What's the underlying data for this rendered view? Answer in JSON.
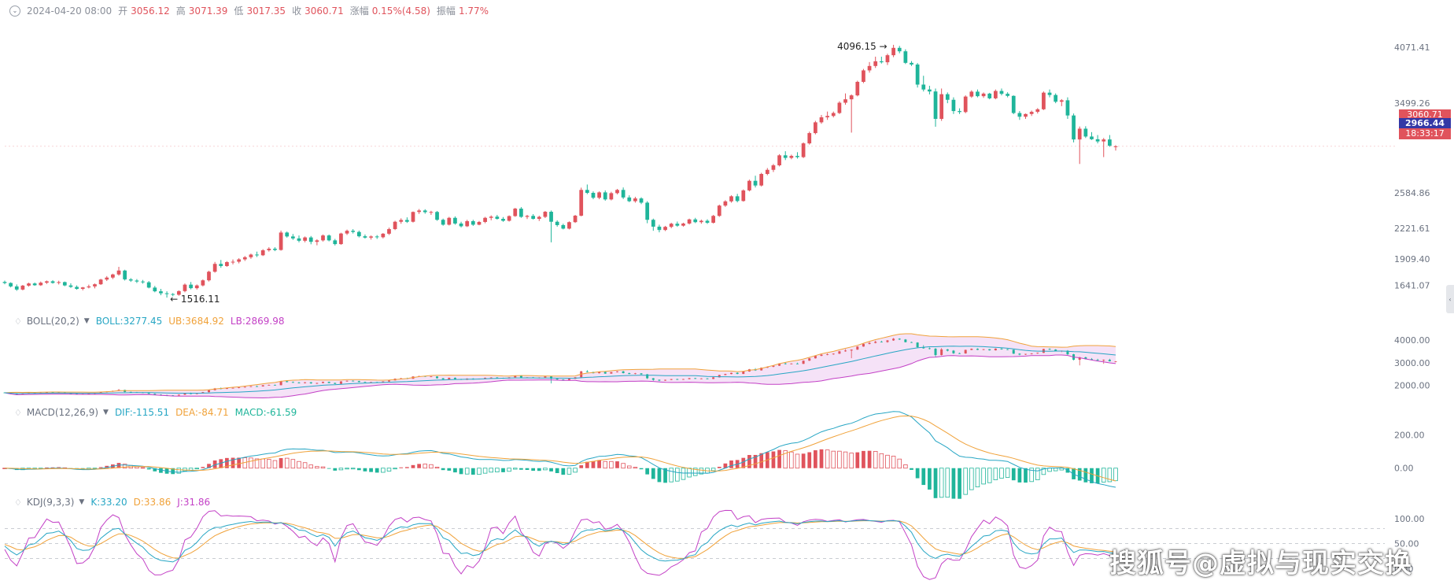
{
  "colors": {
    "up": "#e0535c",
    "down": "#1fb59a",
    "boll_mid": "#27a6c4",
    "boll_ub": "#f0a23a",
    "boll_lb": "#c341c6",
    "boll_fill": "#f3ddf6",
    "dif": "#27a6c4",
    "dea": "#f0a23a",
    "k": "#27a6c4",
    "d": "#f0a23a",
    "j": "#c341c6",
    "axis_text": "#6b7280",
    "grid": "#dcdfe4",
    "last_price_box": "#e0535c",
    "cross_price_box": "#3338a6"
  },
  "header": {
    "collapse_icon": "chevron-circle-icon",
    "datetime": "2024-04-20 08:00",
    "open_label": "开",
    "open_value": "3056.12",
    "high_label": "高",
    "high_value": "3071.39",
    "low_label": "低",
    "low_value": "3017.35",
    "close_label": "收",
    "close_value": "3060.71",
    "change_label": "涨幅",
    "change_value": "0.15%(4.58)",
    "amp_label": "振幅",
    "amp_value": "1.77%"
  },
  "boll_header": {
    "name": "BOLL(20,2)",
    "mid": "BOLL:3277.45",
    "ub": "UB:3684.92",
    "lb": "LB:2869.98"
  },
  "macd_header": {
    "name": "MACD(12,26,9)",
    "dif": "DIF:-115.51",
    "dea": "DEA:-84.71",
    "macd": "MACD:-61.59"
  },
  "kdj_header": {
    "name": "KDJ(9,3,3)",
    "k": "K:33.20",
    "d": "D:33.86",
    "j": "J:31.86"
  },
  "price_boxes": {
    "last_price": "3060.71",
    "crosshair_price": "2966.44",
    "countdown": "18:33:17"
  },
  "watermark": "搜狐号@虚拟与现实交换",
  "chart_data": [
    {
      "type": "candlestick",
      "yaxis_ticks": [
        "4071.41",
        "3499.26",
        "2584.86",
        "2221.61",
        "1909.40",
        "1641.07"
      ],
      "ylim": [
        1420,
        4200
      ],
      "annotations": {
        "max": "4096.15",
        "min": "1516.11"
      },
      "ohlc": [
        [
          1676,
          1689,
          1652,
          1665
        ],
        [
          1665,
          1672,
          1620,
          1630
        ],
        [
          1630,
          1650,
          1585,
          1598
        ],
        [
          1598,
          1645,
          1590,
          1638
        ],
        [
          1638,
          1668,
          1628,
          1660
        ],
        [
          1660,
          1670,
          1636,
          1642
        ],
        [
          1642,
          1680,
          1635,
          1668
        ],
        [
          1668,
          1690,
          1655,
          1682
        ],
        [
          1682,
          1694,
          1658,
          1666
        ],
        [
          1666,
          1688,
          1650,
          1674
        ],
        [
          1674,
          1680,
          1632,
          1640
        ],
        [
          1640,
          1662,
          1615,
          1625
        ],
        [
          1625,
          1640,
          1596,
          1605
        ],
        [
          1605,
          1625,
          1590,
          1620
        ],
        [
          1620,
          1648,
          1610,
          1630
        ],
        [
          1630,
          1660,
          1610,
          1652
        ],
        [
          1652,
          1708,
          1645,
          1700
        ],
        [
          1700,
          1735,
          1685,
          1720
        ],
        [
          1720,
          1760,
          1705,
          1752
        ],
        [
          1752,
          1830,
          1740,
          1792
        ],
        [
          1792,
          1800,
          1690,
          1702
        ],
        [
          1702,
          1715,
          1676,
          1690
        ],
        [
          1690,
          1705,
          1665,
          1680
        ],
        [
          1680,
          1696,
          1658,
          1672
        ],
        [
          1672,
          1685,
          1610,
          1618
        ],
        [
          1618,
          1635,
          1570,
          1580
        ],
        [
          1580,
          1605,
          1540,
          1560
        ],
        [
          1560,
          1580,
          1516,
          1552
        ],
        [
          1552,
          1562,
          1530,
          1545
        ],
        [
          1545,
          1590,
          1535,
          1582
        ],
        [
          1582,
          1660,
          1570,
          1648
        ],
        [
          1648,
          1675,
          1600,
          1612
        ],
        [
          1612,
          1650,
          1598,
          1640
        ],
        [
          1640,
          1702,
          1630,
          1692
        ],
        [
          1692,
          1790,
          1680,
          1780
        ],
        [
          1780,
          1880,
          1770,
          1860
        ],
        [
          1860,
          1900,
          1820,
          1838
        ],
        [
          1838,
          1888,
          1830,
          1878
        ],
        [
          1878,
          1905,
          1855,
          1882
        ],
        [
          1882,
          1918,
          1865,
          1906
        ],
        [
          1906,
          1940,
          1890,
          1928
        ],
        [
          1928,
          1965,
          1912,
          1955
        ],
        [
          1955,
          1985,
          1930,
          1948
        ],
        [
          1948,
          2010,
          1940,
          1999
        ],
        [
          1999,
          2030,
          1985,
          2015
        ],
        [
          2015,
          2030,
          1990,
          2002
        ],
        [
          2002,
          2200,
          1995,
          2180
        ],
        [
          2180,
          2190,
          2128,
          2140
        ],
        [
          2140,
          2165,
          2105,
          2120
        ],
        [
          2120,
          2150,
          2080,
          2096
        ],
        [
          2096,
          2140,
          2080,
          2130
        ],
        [
          2130,
          2145,
          2060,
          2085
        ],
        [
          2085,
          2112,
          2050,
          2100
        ],
        [
          2100,
          2160,
          2088,
          2150
        ],
        [
          2150,
          2160,
          2090,
          2100
        ],
        [
          2100,
          2115,
          2048,
          2062
        ],
        [
          2062,
          2178,
          2055,
          2170
        ],
        [
          2170,
          2210,
          2155,
          2198
        ],
        [
          2198,
          2215,
          2170,
          2186
        ],
        [
          2186,
          2200,
          2130,
          2142
        ],
        [
          2142,
          2160,
          2118,
          2128
        ],
        [
          2128,
          2150,
          2108,
          2140
        ],
        [
          2140,
          2154,
          2115,
          2132
        ],
        [
          2132,
          2175,
          2120,
          2168
        ],
        [
          2168,
          2230,
          2155,
          2215
        ],
        [
          2215,
          2300,
          2205,
          2290
        ],
        [
          2290,
          2325,
          2270,
          2308
        ],
        [
          2308,
          2335,
          2278,
          2290
        ],
        [
          2290,
          2395,
          2282,
          2390
        ],
        [
          2390,
          2420,
          2370,
          2405
        ],
        [
          2405,
          2418,
          2372,
          2388
        ],
        [
          2388,
          2402,
          2360,
          2390
        ],
        [
          2390,
          2400,
          2300,
          2310
        ],
        [
          2310,
          2322,
          2250,
          2260
        ],
        [
          2260,
          2340,
          2252,
          2330
        ],
        [
          2330,
          2345,
          2260,
          2272
        ],
        [
          2272,
          2290,
          2232,
          2244
        ],
        [
          2244,
          2310,
          2236,
          2296
        ],
        [
          2296,
          2310,
          2248,
          2260
        ],
        [
          2260,
          2298,
          2254,
          2288
        ],
        [
          2288,
          2340,
          2275,
          2330
        ],
        [
          2330,
          2355,
          2305,
          2342
        ],
        [
          2342,
          2360,
          2312,
          2320
        ],
        [
          2320,
          2338,
          2290,
          2300
        ],
        [
          2300,
          2355,
          2292,
          2348
        ],
        [
          2348,
          2432,
          2340,
          2424
        ],
        [
          2424,
          2440,
          2330,
          2340
        ],
        [
          2340,
          2360,
          2318,
          2350
        ],
        [
          2350,
          2368,
          2312,
          2320
        ],
        [
          2320,
          2352,
          2298,
          2340
        ],
        [
          2340,
          2400,
          2328,
          2392
        ],
        [
          2392,
          2405,
          2080,
          2290
        ],
        [
          2290,
          2305,
          2240,
          2256
        ],
        [
          2256,
          2270,
          2212,
          2220
        ],
        [
          2220,
          2294,
          2212,
          2286
        ],
        [
          2286,
          2360,
          2278,
          2352
        ],
        [
          2352,
          2638,
          2345,
          2615
        ],
        [
          2615,
          2670,
          2572,
          2585
        ],
        [
          2585,
          2600,
          2520,
          2535
        ],
        [
          2535,
          2600,
          2520,
          2590
        ],
        [
          2590,
          2610,
          2505,
          2518
        ],
        [
          2518,
          2596,
          2508,
          2582
        ],
        [
          2582,
          2625,
          2570,
          2615
        ],
        [
          2615,
          2640,
          2522,
          2538
        ],
        [
          2538,
          2560,
          2490,
          2500
        ],
        [
          2500,
          2545,
          2485,
          2528
        ],
        [
          2528,
          2540,
          2470,
          2485
        ],
        [
          2485,
          2500,
          2275,
          2310
        ],
        [
          2310,
          2322,
          2198,
          2240
        ],
        [
          2240,
          2260,
          2182,
          2206
        ],
        [
          2206,
          2248,
          2195,
          2238
        ],
        [
          2238,
          2280,
          2224,
          2270
        ],
        [
          2270,
          2292,
          2238,
          2250
        ],
        [
          2250,
          2280,
          2240,
          2272
        ],
        [
          2272,
          2322,
          2262,
          2314
        ],
        [
          2314,
          2330,
          2276,
          2286
        ],
        [
          2286,
          2312,
          2270,
          2300
        ],
        [
          2300,
          2315,
          2268,
          2280
        ],
        [
          2280,
          2360,
          2272,
          2350
        ],
        [
          2350,
          2465,
          2340,
          2455
        ],
        [
          2455,
          2510,
          2442,
          2498
        ],
        [
          2498,
          2560,
          2485,
          2550
        ],
        [
          2550,
          2575,
          2488,
          2502
        ],
        [
          2502,
          2620,
          2495,
          2610
        ],
        [
          2610,
          2720,
          2600,
          2708
        ],
        [
          2708,
          2760,
          2640,
          2660
        ],
        [
          2660,
          2790,
          2650,
          2778
        ],
        [
          2778,
          2838,
          2765,
          2820
        ],
        [
          2820,
          2880,
          2798,
          2866
        ],
        [
          2866,
          2980,
          2855,
          2968
        ],
        [
          2968,
          3010,
          2920,
          2942
        ],
        [
          2942,
          2975,
          2928,
          2962
        ],
        [
          2962,
          3000,
          2935,
          2950
        ],
        [
          2950,
          3100,
          2940,
          3090
        ],
        [
          3090,
          3210,
          3078,
          3195
        ],
        [
          3195,
          3320,
          3182,
          3305
        ],
        [
          3305,
          3380,
          3290,
          3356
        ],
        [
          3356,
          3415,
          3330,
          3370
        ],
        [
          3370,
          3415,
          3355,
          3400
        ],
        [
          3400,
          3520,
          3390,
          3505
        ],
        [
          3505,
          3600,
          3485,
          3540
        ],
        [
          3540,
          3590,
          3200,
          3580
        ],
        [
          3580,
          3730,
          3570,
          3718
        ],
        [
          3718,
          3850,
          3705,
          3835
        ],
        [
          3835,
          3920,
          3812,
          3880
        ],
        [
          3880,
          3975,
          3860,
          3928
        ],
        [
          3928,
          3975,
          3905,
          3918
        ],
        [
          3918,
          4005,
          3890,
          3990
        ],
        [
          3990,
          4096,
          3970,
          4065
        ],
        [
          4065,
          4085,
          4010,
          4030
        ],
        [
          4030,
          4050,
          3900,
          3912
        ],
        [
          3912,
          3930,
          3880,
          3895
        ],
        [
          3895,
          3910,
          3660,
          3690
        ],
        [
          3690,
          3780,
          3620,
          3640
        ],
        [
          3640,
          3678,
          3590,
          3620
        ],
        [
          3620,
          3650,
          3260,
          3340
        ],
        [
          3340,
          3650,
          3320,
          3592
        ],
        [
          3592,
          3610,
          3500,
          3535
        ],
        [
          3535,
          3560,
          3390,
          3420
        ],
        [
          3420,
          3448,
          3390,
          3410
        ],
        [
          3410,
          3580,
          3398,
          3568
        ],
        [
          3568,
          3632,
          3555,
          3618
        ],
        [
          3618,
          3640,
          3560,
          3572
        ],
        [
          3572,
          3610,
          3555,
          3598
        ],
        [
          3598,
          3606,
          3540,
          3550
        ],
        [
          3550,
          3640,
          3540,
          3625
        ],
        [
          3625,
          3650,
          3580,
          3596
        ],
        [
          3596,
          3612,
          3560,
          3575
        ],
        [
          3575,
          3580,
          3388,
          3400
        ],
        [
          3400,
          3420,
          3330,
          3362
        ],
        [
          3362,
          3395,
          3340,
          3390
        ],
        [
          3390,
          3425,
          3370,
          3412
        ],
        [
          3412,
          3450,
          3395,
          3438
        ],
        [
          3438,
          3620,
          3430,
          3608
        ],
        [
          3608,
          3640,
          3560,
          3584
        ],
        [
          3584,
          3600,
          3500,
          3515
        ],
        [
          3515,
          3542,
          3470,
          3530
        ],
        [
          3530,
          3560,
          3340,
          3375
        ],
        [
          3375,
          3395,
          3100,
          3130
        ],
        [
          3130,
          3262,
          2880,
          3240
        ],
        [
          3240,
          3265,
          3145,
          3160
        ],
        [
          3160,
          3205,
          3125,
          3132
        ],
        [
          3132,
          3175,
          3090,
          3110
        ],
        [
          3110,
          3145,
          2950,
          3130
        ],
        [
          3130,
          3175,
          3055,
          3066
        ],
        [
          3056,
          3071,
          3017,
          3060
        ]
      ]
    },
    {
      "type": "line",
      "name": "BOLL(20,2)",
      "yaxis_ticks": [
        "4000.00",
        "3000.00",
        "2000.00"
      ],
      "ylim": [
        1350,
        4600
      ],
      "series_values": {
        "mid": "3277.45",
        "ub": "3684.92",
        "lb": "2869.98"
      }
    },
    {
      "type": "bar",
      "name": "MACD(12,26,9)",
      "yaxis_ticks": [
        "200.00",
        "0.00"
      ],
      "ylim": [
        -120,
        260
      ],
      "series_values": {
        "dif": "-115.51",
        "dea": "-84.71",
        "macd": "-61.59"
      }
    },
    {
      "type": "line",
      "name": "KDJ(9,3,3)",
      "yaxis_ticks": [
        "100.00",
        "50.00",
        "0.00"
      ],
      "ylim": [
        -20,
        122
      ],
      "reference_lines": [
        80,
        50,
        20
      ],
      "series_values": {
        "k": "33.20",
        "d": "33.86",
        "j": "31.86"
      }
    }
  ]
}
